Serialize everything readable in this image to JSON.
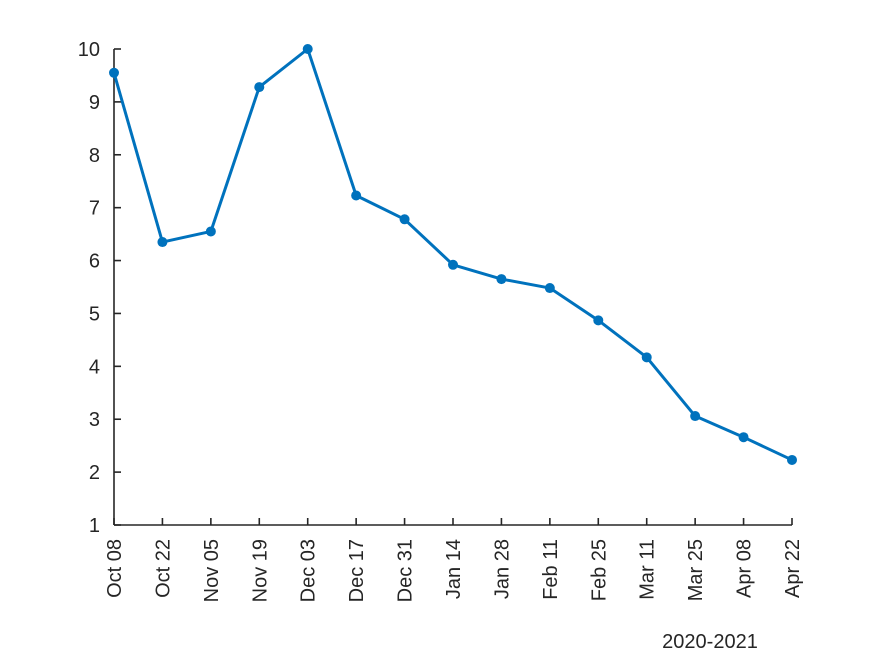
{
  "chart_data": {
    "type": "line",
    "title": "",
    "xlabel": "",
    "ylabel": "",
    "x_caption": "2020-2021",
    "categories": [
      "Oct 08",
      "Oct 22",
      "Nov 05",
      "Nov 19",
      "Dec 03",
      "Dec 17",
      "Dec 31",
      "Jan 14",
      "Jan 28",
      "Feb 11",
      "Feb 25",
      "Mar 11",
      "Mar 25",
      "Apr 08",
      "Apr 22"
    ],
    "ylim": [
      1,
      10
    ],
    "yticks": [
      1,
      2,
      3,
      4,
      5,
      6,
      7,
      8,
      9,
      10
    ],
    "grid": false,
    "series": [
      {
        "values": [
          9.55,
          6.35,
          6.55,
          9.28,
          10.0,
          7.23,
          6.78,
          5.92,
          5.65,
          5.48,
          4.87,
          4.17,
          3.06,
          2.66,
          2.23
        ],
        "color": "#0072BD"
      }
    ]
  }
}
